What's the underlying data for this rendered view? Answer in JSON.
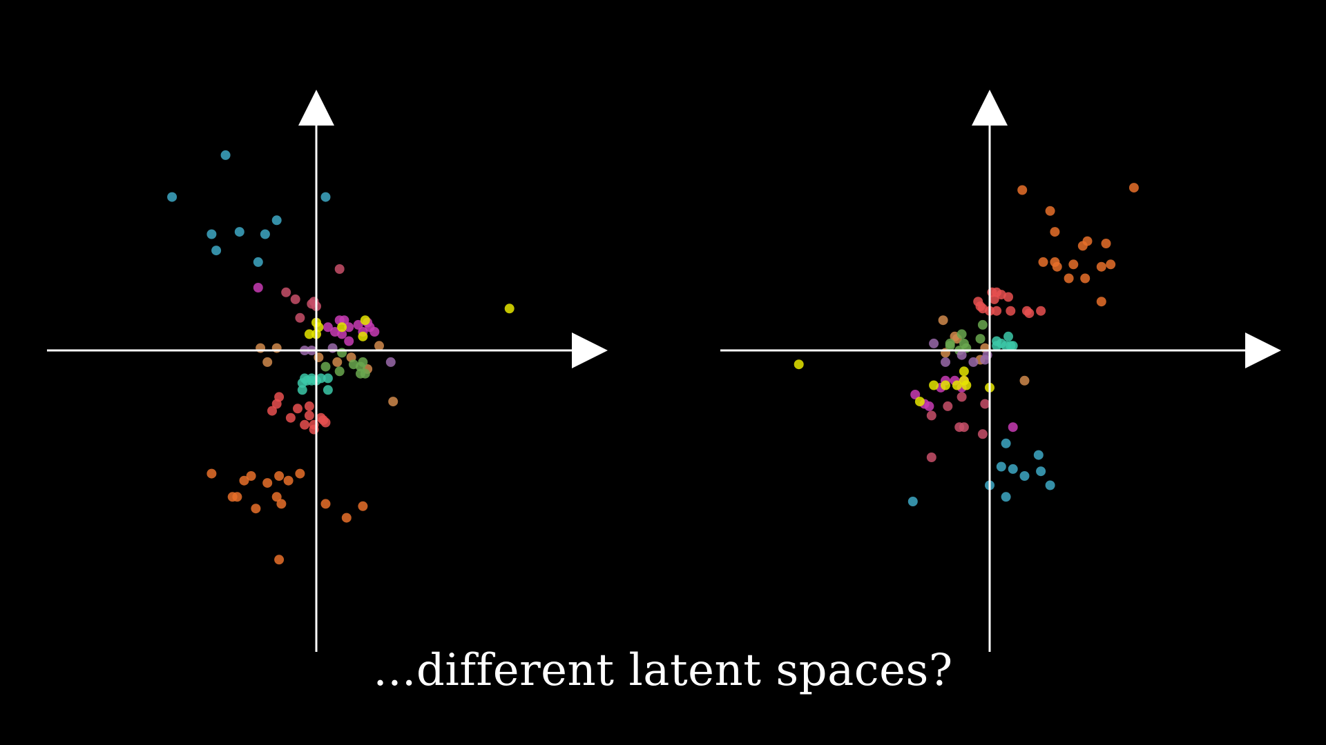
{
  "caption": "...different latent spaces?",
  "colors": {
    "background": "#000000",
    "axis": "#ffffff",
    "cyan": "#3ea8c4",
    "orange": "#e8702a",
    "red": "#e85050",
    "rose": "#c8506a",
    "magenta": "#c83cb4",
    "yellow": "#e6e600",
    "tan": "#d08a4c",
    "lavender": "#9a6aaa",
    "green": "#6aa84f",
    "teal": "#3cc8a8"
  },
  "chart_data": [
    {
      "type": "scatter",
      "title": "",
      "xlabel": "",
      "ylabel": "",
      "xlim": [
        -10,
        10
      ],
      "ylim": [
        -10,
        10
      ],
      "grid": false,
      "legend": "none",
      "axes": "arrows through origin",
      "series": [
        {
          "color": "cyan",
          "points": [
            [
              -3.9,
              8.4
            ],
            [
              -6.2,
              6.6
            ],
            [
              -4.5,
              5.0
            ],
            [
              -3.3,
              5.1
            ],
            [
              -2.2,
              5.0
            ],
            [
              -1.7,
              5.6
            ],
            [
              -4.3,
              4.3
            ],
            [
              -2.5,
              3.8
            ],
            [
              0.4,
              6.6
            ]
          ]
        },
        {
          "color": "orange",
          "points": [
            [
              -4.5,
              -5.3
            ],
            [
              -3.1,
              -5.6
            ],
            [
              -2.8,
              -5.4
            ],
            [
              -2.1,
              -5.7
            ],
            [
              -1.6,
              -5.4
            ],
            [
              -1.2,
              -5.6
            ],
            [
              -0.7,
              -5.3
            ],
            [
              -3.6,
              -6.3
            ],
            [
              -3.4,
              -6.3
            ],
            [
              -1.7,
              -6.3
            ],
            [
              -1.5,
              -6.6
            ],
            [
              -2.6,
              -6.8
            ],
            [
              0.4,
              -6.6
            ],
            [
              2.0,
              -6.7
            ],
            [
              1.3,
              -7.2
            ],
            [
              -1.6,
              -9.0
            ]
          ]
        },
        {
          "color": "red",
          "points": [
            [
              -1.6,
              -2.0
            ],
            [
              -1.7,
              -2.3
            ],
            [
              -1.9,
              -2.6
            ],
            [
              -0.8,
              -2.5
            ],
            [
              -0.3,
              -2.4
            ],
            [
              -1.1,
              -2.9
            ],
            [
              -0.3,
              -2.8
            ],
            [
              0.2,
              -2.9
            ],
            [
              0.3,
              -3.0
            ],
            [
              0.4,
              -3.1
            ],
            [
              -0.1,
              -3.2
            ],
            [
              -0.5,
              -3.2
            ],
            [
              -0.1,
              -3.4
            ]
          ]
        },
        {
          "color": "rose",
          "points": [
            [
              1.0,
              3.5
            ],
            [
              -1.3,
              2.5
            ],
            [
              -0.9,
              2.2
            ],
            [
              -0.1,
              2.1
            ],
            [
              -0.2,
              2.0
            ],
            [
              0.0,
              1.9
            ],
            [
              -0.7,
              1.4
            ]
          ]
        },
        {
          "color": "magenta",
          "points": [
            [
              -2.5,
              2.7
            ],
            [
              1.0,
              1.3
            ],
            [
              1.2,
              1.3
            ],
            [
              1.8,
              1.1
            ],
            [
              2.2,
              1.2
            ],
            [
              2.3,
              1.0
            ],
            [
              1.4,
              1.0
            ],
            [
              0.5,
              1.0
            ],
            [
              2.0,
              0.8
            ],
            [
              2.5,
              0.8
            ],
            [
              0.8,
              0.8
            ],
            [
              1.1,
              0.7
            ],
            [
              1.4,
              0.4
            ]
          ]
        },
        {
          "color": "yellow",
          "points": [
            [
              8.3,
              1.8
            ],
            [
              0.0,
              1.2
            ],
            [
              2.1,
              1.3
            ],
            [
              0.1,
              1.0
            ],
            [
              1.1,
              1.0
            ],
            [
              -0.3,
              0.7
            ],
            [
              0.0,
              0.7
            ],
            [
              2.0,
              0.6
            ]
          ]
        },
        {
          "color": "tan",
          "points": [
            [
              -2.4,
              0.1
            ],
            [
              -1.7,
              0.1
            ],
            [
              2.7,
              0.2
            ],
            [
              -2.1,
              -0.5
            ],
            [
              0.1,
              -0.3
            ],
            [
              0.9,
              -0.5
            ],
            [
              1.5,
              -0.3
            ],
            [
              2.2,
              -0.8
            ],
            [
              3.3,
              -2.2
            ]
          ]
        },
        {
          "color": "lavender",
          "points": [
            [
              -0.5,
              0.0
            ],
            [
              -0.2,
              0.0
            ],
            [
              0.7,
              0.1
            ],
            [
              3.2,
              -0.5
            ]
          ]
        },
        {
          "color": "green",
          "points": [
            [
              1.1,
              -0.1
            ],
            [
              0.4,
              -0.7
            ],
            [
              1.0,
              -0.9
            ],
            [
              1.6,
              -0.6
            ],
            [
              1.9,
              -0.7
            ],
            [
              2.0,
              -0.5
            ],
            [
              1.9,
              -1.0
            ],
            [
              2.1,
              -1.0
            ]
          ]
        },
        {
          "color": "teal",
          "points": [
            [
              -0.2,
              -1.2
            ],
            [
              -0.5,
              -1.2
            ],
            [
              0.2,
              -1.2
            ],
            [
              0.5,
              -1.2
            ],
            [
              -0.4,
              -1.3
            ],
            [
              -0.6,
              -1.4
            ],
            [
              -0.2,
              -1.3
            ],
            [
              0.0,
              -1.3
            ],
            [
              -0.6,
              -1.7
            ],
            [
              0.5,
              -1.7
            ]
          ]
        }
      ]
    },
    {
      "type": "scatter",
      "title": "",
      "xlabel": "",
      "ylabel": "",
      "xlim": [
        -10,
        10
      ],
      "ylim": [
        -10,
        10
      ],
      "grid": false,
      "legend": "none",
      "axes": "arrows through origin",
      "series": [
        {
          "color": "orange",
          "points": [
            [
              1.4,
              6.9
            ],
            [
              6.2,
              7.0
            ],
            [
              2.6,
              6.0
            ],
            [
              2.8,
              5.1
            ],
            [
              4.0,
              4.5
            ],
            [
              4.2,
              4.7
            ],
            [
              5.0,
              4.6
            ],
            [
              2.3,
              3.8
            ],
            [
              2.8,
              3.8
            ],
            [
              2.9,
              3.6
            ],
            [
              3.6,
              3.7
            ],
            [
              4.8,
              3.6
            ],
            [
              5.2,
              3.7
            ],
            [
              3.4,
              3.1
            ],
            [
              4.1,
              3.1
            ],
            [
              4.8,
              2.1
            ]
          ]
        },
        {
          "color": "red",
          "points": [
            [
              0.1,
              2.5
            ],
            [
              0.3,
              2.5
            ],
            [
              0.5,
              2.4
            ],
            [
              0.8,
              2.3
            ],
            [
              0.2,
              2.2
            ],
            [
              -0.5,
              2.1
            ],
            [
              -0.4,
              1.9
            ],
            [
              -0.3,
              1.8
            ],
            [
              0.0,
              1.7
            ],
            [
              0.3,
              1.7
            ],
            [
              0.9,
              1.7
            ],
            [
              1.6,
              1.7
            ],
            [
              2.2,
              1.7
            ],
            [
              1.7,
              1.6
            ]
          ]
        },
        {
          "color": "tan",
          "points": [
            [
              -2.0,
              1.3
            ],
            [
              -1.5,
              0.6
            ],
            [
              -1.4,
              0.5
            ],
            [
              -0.2,
              0.1
            ],
            [
              -1.9,
              -0.1
            ],
            [
              -0.4,
              -0.4
            ],
            [
              1.5,
              -1.3
            ]
          ]
        },
        {
          "color": "green",
          "points": [
            [
              -0.3,
              1.1
            ],
            [
              -1.2,
              0.7
            ],
            [
              -0.4,
              0.5
            ],
            [
              -1.7,
              0.3
            ],
            [
              -1.1,
              0.3
            ],
            [
              -1.0,
              0.1
            ],
            [
              -1.3,
              0.0
            ],
            [
              -1.7,
              0.2
            ]
          ]
        },
        {
          "color": "teal",
          "points": [
            [
              0.8,
              0.6
            ],
            [
              0.3,
              0.4
            ],
            [
              0.5,
              0.3
            ],
            [
              0.7,
              0.2
            ],
            [
              0.9,
              0.2
            ],
            [
              1.0,
              0.2
            ],
            [
              0.3,
              0.2
            ]
          ]
        },
        {
          "color": "lavender",
          "points": [
            [
              -2.4,
              0.3
            ],
            [
              -1.2,
              -0.2
            ],
            [
              -0.1,
              -0.2
            ],
            [
              -0.2,
              -0.4
            ],
            [
              -0.7,
              -0.5
            ],
            [
              -1.9,
              -0.5
            ]
          ]
        },
        {
          "color": "magenta",
          "points": [
            [
              -1.9,
              -1.3
            ],
            [
              -1.1,
              -1.3
            ],
            [
              -1.5,
              -1.3
            ],
            [
              -2.1,
              -1.6
            ],
            [
              -1.2,
              -1.6
            ],
            [
              -3.2,
              -1.9
            ],
            [
              -2.8,
              -2.3
            ],
            [
              -2.6,
              -2.4
            ],
            [
              1.0,
              -3.3
            ]
          ]
        },
        {
          "color": "yellow",
          "points": [
            [
              -8.2,
              -0.6
            ],
            [
              -1.1,
              -0.9
            ],
            [
              -1.1,
              -1.3
            ],
            [
              -2.4,
              -1.5
            ],
            [
              -1.9,
              -1.5
            ],
            [
              -1.4,
              -1.5
            ],
            [
              -1.0,
              -1.5
            ],
            [
              0.0,
              -1.6
            ],
            [
              -3.0,
              -2.2
            ]
          ]
        },
        {
          "color": "rose",
          "points": [
            [
              -1.2,
              -2.0
            ],
            [
              -0.2,
              -2.3
            ],
            [
              -1.8,
              -2.4
            ],
            [
              -2.5,
              -2.8
            ],
            [
              -1.3,
              -3.3
            ],
            [
              -1.1,
              -3.3
            ],
            [
              -0.3,
              -3.6
            ],
            [
              -2.5,
              -4.6
            ]
          ]
        },
        {
          "color": "cyan",
          "points": [
            [
              0.7,
              -4.0
            ],
            [
              2.1,
              -4.5
            ],
            [
              0.5,
              -5.0
            ],
            [
              1.0,
              -5.1
            ],
            [
              2.2,
              -5.2
            ],
            [
              1.5,
              -5.4
            ],
            [
              2.6,
              -5.8
            ],
            [
              0.0,
              -5.8
            ],
            [
              0.7,
              -6.3
            ],
            [
              -3.3,
              -6.5
            ]
          ]
        }
      ]
    }
  ]
}
